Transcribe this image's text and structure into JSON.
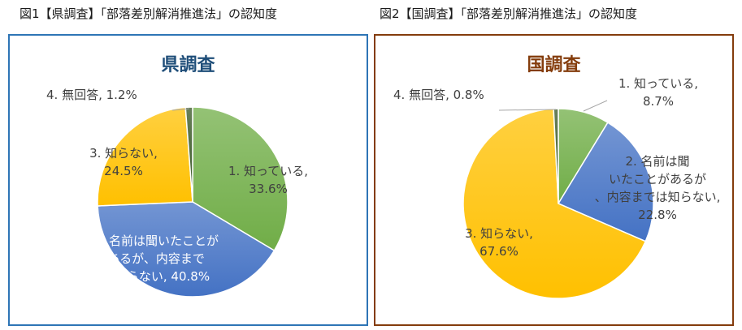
{
  "figures": [
    {
      "title": "図1【県調査】「部落差別解消推進法」の認知度",
      "heading": "県調査",
      "heading_color": "#1f4e79",
      "frame_color": "#2e75b6"
    },
    {
      "title": "図2【国調査】「部落差別解消推進法」の認知度",
      "heading": "国調査",
      "heading_color": "#843c0c",
      "frame_color": "#843c0c"
    }
  ],
  "chart_data": [
    {
      "type": "pie",
      "title": "県調査",
      "slices": [
        {
          "label": "1. 知っている,",
          "value": 33.6,
          "value_text": "33.6%",
          "color": "#70ad47"
        },
        {
          "label": "2. 名前は聞いたことがあるが、内容までは知らない,",
          "value": 40.8,
          "value_text": "40.8%",
          "color": "#4472c4"
        },
        {
          "label": "3. 知らない,",
          "value": 24.5,
          "value_text": "24.5%",
          "color": "#ffc000"
        },
        {
          "label": "4. 無回答,",
          "value": 1.2,
          "value_text": "1.2%",
          "color": "#375623"
        }
      ]
    },
    {
      "type": "pie",
      "title": "国調査",
      "slices": [
        {
          "label": "1. 知っている,",
          "value": 8.7,
          "value_text": "8.7%",
          "color": "#70ad47"
        },
        {
          "label": "2. 名前は聞いたことがあるが、内容までは知らない,",
          "value": 22.8,
          "value_text": "22.8%",
          "color": "#4472c4"
        },
        {
          "label": "3. 知らない,",
          "value": 67.6,
          "value_text": "67.6%",
          "color": "#ffc000"
        },
        {
          "label": "4. 無回答,",
          "value": 0.8,
          "value_text": "0.8%",
          "color": "#375623"
        }
      ]
    }
  ]
}
